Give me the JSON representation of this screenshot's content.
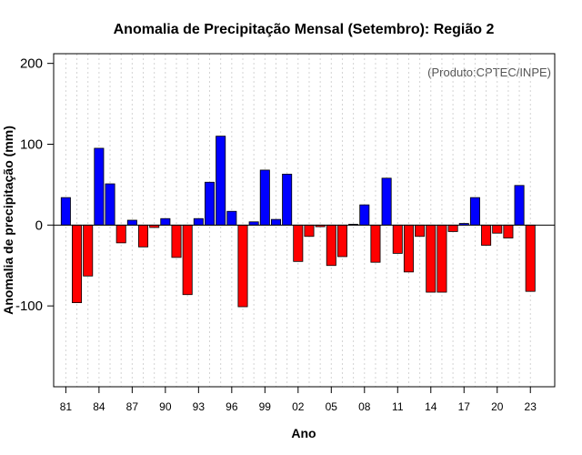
{
  "chart_data": {
    "type": "bar",
    "title": "Anomalia de Precipitação Mensal (Setembro): Região 2",
    "xlabel": "Ano",
    "ylabel": "Anomalia de precipitação (mm)",
    "credit": "(Produto:CPTEC/INPE)",
    "ylim": [
      -200,
      212
    ],
    "xlim": [
      1979.9,
      2025.2
    ],
    "yticks": [
      {
        "value": 200,
        "label": "200"
      },
      {
        "value": 100,
        "label": "100"
      },
      {
        "value": 0,
        "label": "0"
      },
      {
        "value": -100,
        "label": "-100"
      }
    ],
    "xticks": [
      {
        "year": 1981,
        "label": "81"
      },
      {
        "year": 1984,
        "label": "84"
      },
      {
        "year": 1987,
        "label": "87"
      },
      {
        "year": 1990,
        "label": "90"
      },
      {
        "year": 1993,
        "label": "93"
      },
      {
        "year": 1996,
        "label": "96"
      },
      {
        "year": 1999,
        "label": "99"
      },
      {
        "year": 2002,
        "label": "02"
      },
      {
        "year": 2005,
        "label": "05"
      },
      {
        "year": 2008,
        "label": "08"
      },
      {
        "year": 2011,
        "label": "11"
      },
      {
        "year": 2014,
        "label": "14"
      },
      {
        "year": 2017,
        "label": "17"
      },
      {
        "year": 2020,
        "label": "20"
      },
      {
        "year": 2023,
        "label": "23"
      }
    ],
    "years": [
      1981,
      1982,
      1983,
      1984,
      1985,
      1986,
      1987,
      1988,
      1989,
      1990,
      1991,
      1992,
      1993,
      1994,
      1995,
      1996,
      1997,
      1998,
      1999,
      2000,
      2001,
      2002,
      2003,
      2004,
      2005,
      2006,
      2007,
      2008,
      2009,
      2010,
      2011,
      2012,
      2013,
      2014,
      2015,
      2016,
      2017,
      2018,
      2019,
      2020,
      2021,
      2022,
      2023
    ],
    "values": [
      34,
      -96,
      -63,
      95,
      51,
      -22,
      6,
      -27,
      -3,
      8,
      -40,
      -86,
      8,
      53,
      110,
      17,
      -101,
      4,
      68,
      7,
      63,
      -45,
      -14,
      -2,
      -50,
      -39,
      1,
      25,
      -46,
      58,
      -35,
      -58,
      -14,
      -83,
      -83,
      -8,
      2,
      34,
      -25,
      -10,
      -16,
      49,
      -82
    ],
    "colors": {
      "positive": "#0000ff",
      "negative": "#ff0000",
      "axis": "#000000",
      "grid": "#d3d3d3",
      "zero_line": "#000000"
    }
  }
}
